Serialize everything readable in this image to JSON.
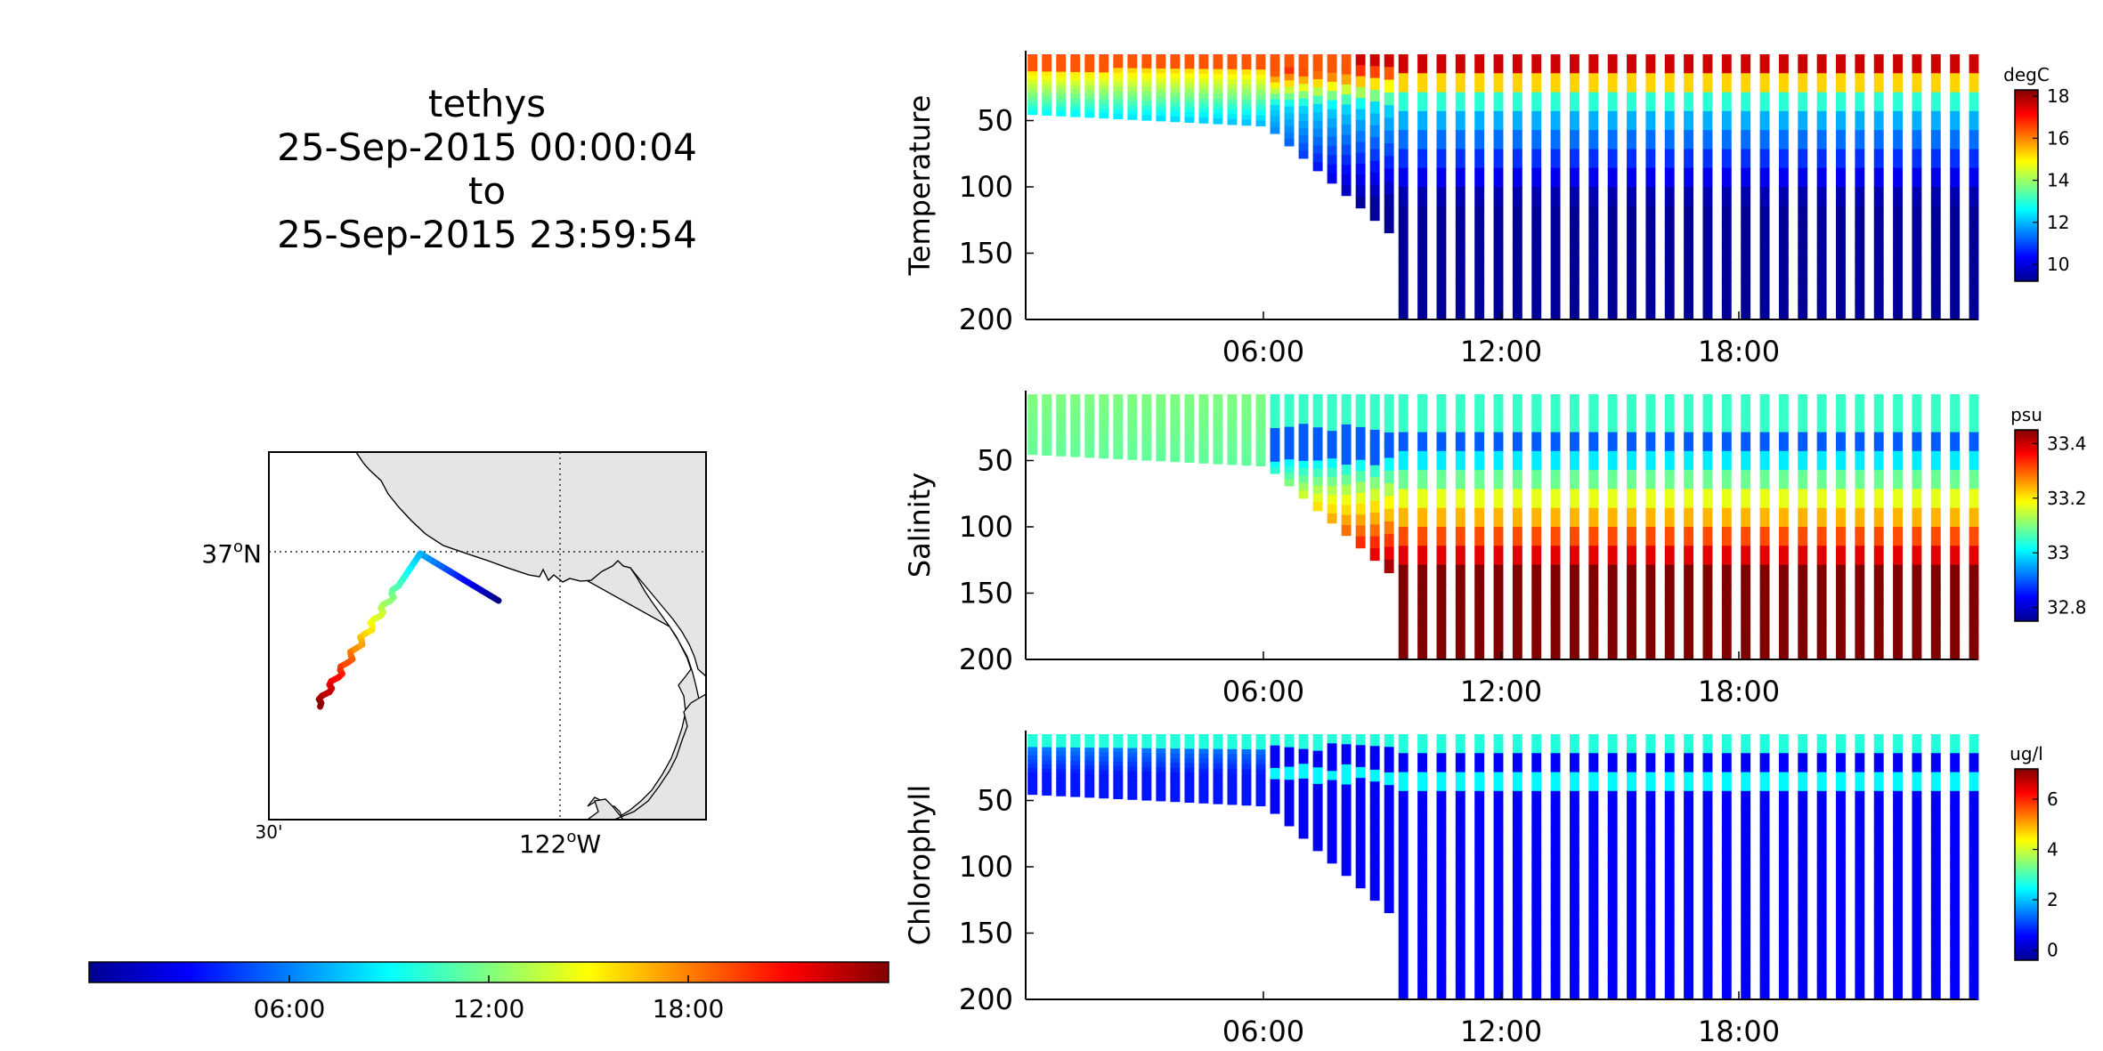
{
  "title": {
    "lines": [
      "tethys",
      "25-Sep-2015 00:00:04",
      "to",
      "25-Sep-2015 23:59:54"
    ]
  },
  "map": {
    "lat_label": "37",
    "lat_deg": "o",
    "lat_hemi": "N",
    "lon_label": "122",
    "lon_deg": "o",
    "lon_hemi": "W",
    "lon_minor_label": "30'",
    "land_color": "#e5e5e5"
  },
  "time_colorbar": {
    "ticks": [
      "06:00",
      "12:00",
      "18:00"
    ]
  },
  "chart_data": [
    {
      "type": "scatter",
      "ylabel": "Temperature",
      "colorbar_label": "degC",
      "colorbar_ticks": [
        "10",
        "12",
        "14",
        "16",
        "18"
      ],
      "colorbar_range": [
        9.2,
        18.3
      ],
      "xticks": [
        "06:00",
        "12:00",
        "18:00"
      ],
      "yticks": [
        "50",
        "100",
        "150",
        "200"
      ],
      "xlim_hours": [
        0,
        24
      ],
      "ylim": [
        0,
        200
      ],
      "y_reversed": true,
      "colormap": "jet"
    },
    {
      "type": "scatter",
      "ylabel": "Salinity",
      "colorbar_label": "psu",
      "colorbar_ticks": [
        "32.8",
        "33",
        "33.2",
        "33.4"
      ],
      "colorbar_range": [
        32.75,
        33.45
      ],
      "xticks": [
        "06:00",
        "12:00",
        "18:00"
      ],
      "yticks": [
        "50",
        "100",
        "150",
        "200"
      ],
      "xlim_hours": [
        0,
        24
      ],
      "ylim": [
        0,
        200
      ],
      "y_reversed": true,
      "colormap": "jet"
    },
    {
      "type": "scatter",
      "ylabel": "Chlorophyll",
      "colorbar_label": "ug/l",
      "colorbar_ticks": [
        "0",
        "2",
        "4",
        "6"
      ],
      "colorbar_range": [
        -0.4,
        7.2
      ],
      "xticks": [
        "06:00",
        "12:00",
        "18:00"
      ],
      "yticks": [
        "50",
        "100",
        "150",
        "200"
      ],
      "xlim_hours": [
        0,
        24
      ],
      "ylim": [
        0,
        200
      ],
      "y_reversed": true,
      "colormap": "jet"
    }
  ]
}
